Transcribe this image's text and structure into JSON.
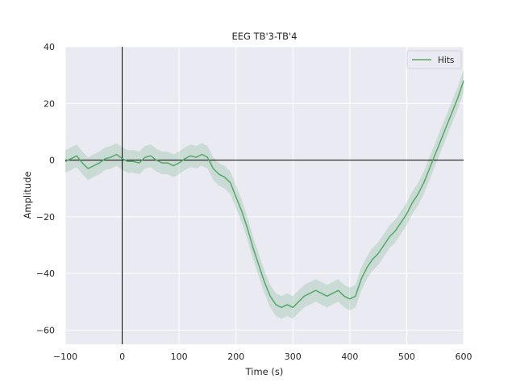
{
  "chart_data": {
    "type": "line",
    "title": "EEG TB'3-TB'4",
    "xlabel": "Time (s)",
    "ylabel": "Amplitude",
    "xlim": [
      -100,
      600
    ],
    "ylim": [
      -65,
      40
    ],
    "xticks": [
      -100,
      0,
      100,
      200,
      300,
      400,
      500,
      600
    ],
    "yticks": [
      -60,
      -40,
      -20,
      0,
      20,
      40
    ],
    "xtick_labels": [
      "−100",
      "0",
      "100",
      "200",
      "300",
      "400",
      "500",
      "600"
    ],
    "ytick_labels": [
      "−60",
      "−40",
      "−20",
      "0",
      "20",
      "40"
    ],
    "grid": true,
    "legend_position": "top-right",
    "reference_lines": {
      "x": 0,
      "y": 0
    },
    "series": [
      {
        "name": "Hits",
        "color": "#55a868",
        "band_color": "#55a868",
        "x": [
          -100,
          -90,
          -80,
          -70,
          -60,
          -50,
          -40,
          -30,
          -20,
          -10,
          0,
          10,
          20,
          30,
          40,
          50,
          60,
          70,
          80,
          90,
          100,
          110,
          120,
          130,
          140,
          150,
          160,
          170,
          180,
          190,
          200,
          210,
          220,
          230,
          240,
          250,
          260,
          270,
          280,
          290,
          300,
          310,
          320,
          330,
          340,
          350,
          360,
          370,
          380,
          390,
          400,
          410,
          420,
          430,
          440,
          450,
          460,
          470,
          480,
          490,
          500,
          510,
          520,
          530,
          540,
          550,
          560,
          570,
          580,
          590,
          600
        ],
        "values": [
          -0.5,
          0.5,
          1.5,
          -1,
          -3,
          -2,
          -1,
          0.5,
          1,
          2,
          0.5,
          -0.5,
          -0.5,
          -1,
          1,
          1.5,
          0,
          -1,
          -1,
          -2,
          -1,
          0.5,
          1.5,
          1,
          2,
          1,
          -3,
          -5,
          -6,
          -8,
          -13,
          -18,
          -24,
          -31,
          -37,
          -43,
          -48,
          -51,
          -52,
          -51,
          -52,
          -50,
          -48,
          -47,
          -46,
          -47,
          -48,
          -47,
          -46,
          -48,
          -49,
          -48,
          -42,
          -38,
          -35,
          -33,
          -30,
          -27,
          -25,
          -22,
          -19,
          -15,
          -12,
          -8,
          -3,
          2,
          7,
          12,
          17,
          22,
          28
        ],
        "lower": [
          -4.5,
          -3.5,
          -2.5,
          -5,
          -7,
          -6,
          -5,
          -3.5,
          -3,
          -2,
          -3.5,
          -4.5,
          -4.5,
          -5,
          -3,
          -2.5,
          -4,
          -5,
          -5,
          -6,
          -5,
          -3.5,
          -2.5,
          -3,
          -2,
          -3,
          -7,
          -9,
          -10,
          -12,
          -17,
          -22,
          -28,
          -35,
          -41,
          -47,
          -52,
          -55,
          -56,
          -55,
          -56,
          -54,
          -52,
          -51,
          -50,
          -51,
          -52,
          -51,
          -50,
          -52,
          -53,
          -52,
          -46,
          -42,
          -39,
          -37,
          -34,
          -31,
          -29,
          -26,
          -23,
          -19,
          -16,
          -12,
          -7,
          -2,
          3,
          8,
          13,
          18,
          24
        ],
        "upper": [
          3.5,
          4.5,
          5.5,
          3,
          1,
          2,
          3,
          4.5,
          5,
          6,
          4.5,
          3.5,
          3.5,
          3,
          5,
          5.5,
          4,
          3,
          3,
          2,
          3,
          4.5,
          5.5,
          5,
          6,
          5,
          1,
          -1,
          -2,
          -4,
          -9,
          -14,
          -20,
          -27,
          -33,
          -39,
          -44,
          -47,
          -48,
          -47,
          -48,
          -46,
          -44,
          -43,
          -42,
          -43,
          -44,
          -43,
          -42,
          -44,
          -45,
          -44,
          -38,
          -34,
          -31,
          -29,
          -26,
          -23,
          -21,
          -18,
          -15,
          -11,
          -8,
          -4,
          1,
          6,
          11,
          16,
          21,
          26,
          32
        ]
      }
    ]
  }
}
